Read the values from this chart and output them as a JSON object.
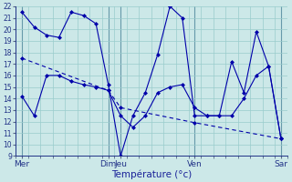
{
  "xlabel": "Température (°c)",
  "bg_color": "#cce8e8",
  "grid_color": "#99cccc",
  "line_color": "#0000aa",
  "ylim": [
    9,
    22
  ],
  "xlim": [
    0,
    22
  ],
  "day_positions": [
    0.5,
    7.5,
    8.5,
    14.5,
    21.5
  ],
  "day_labels": [
    "Mer",
    "Dim",
    "Jeu",
    "Ven",
    "Sar"
  ],
  "num_cols": 22,
  "line1_x": [
    0.5,
    1.5,
    2.5,
    3.5,
    4.5,
    5.5,
    6.5,
    7.5,
    8.5,
    9.5,
    10.5,
    11.5,
    12.5,
    13.5,
    14.5,
    15.5,
    16.5,
    17.5,
    18.5,
    19.5,
    20.5,
    21.5
  ],
  "line1_y": [
    21.5,
    20.2,
    19.5,
    19.3,
    21.5,
    21.2,
    20.5,
    15.2,
    9.0,
    12.5,
    14.5,
    17.8,
    22.0,
    21.0,
    12.5,
    12.5,
    12.5,
    17.2,
    14.5,
    19.8,
    16.8,
    10.5
  ],
  "line2_x": [
    0.5,
    7.5,
    8.5,
    14.5,
    21.5
  ],
  "line2_y": [
    17.5,
    14.7,
    13.2,
    11.9,
    10.5
  ],
  "line3_x": [
    0.5,
    1.5,
    2.5,
    3.5,
    4.5,
    5.5,
    6.5,
    7.5,
    8.5,
    9.5,
    10.5,
    11.5,
    12.5,
    13.5,
    14.5,
    15.5,
    16.5,
    17.5,
    18.5,
    19.5,
    20.5,
    21.5
  ],
  "line3_y": [
    14.2,
    12.5,
    16.0,
    16.0,
    15.5,
    15.2,
    15.0,
    14.7,
    12.5,
    11.5,
    12.5,
    14.5,
    15.0,
    15.2,
    13.2,
    12.5,
    12.5,
    12.5,
    14.0,
    16.0,
    16.8,
    10.5
  ]
}
